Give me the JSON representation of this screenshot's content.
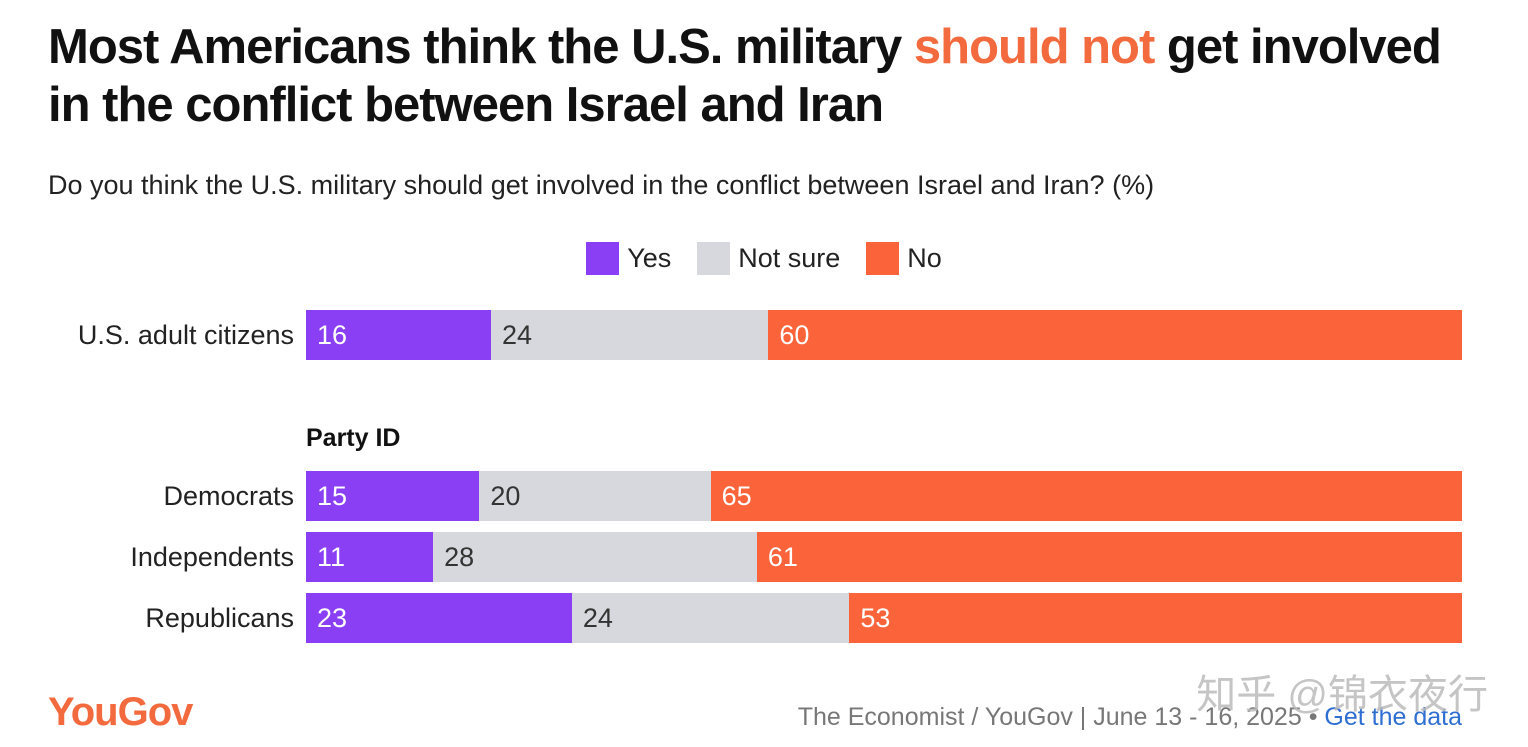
{
  "title": {
    "part1": "Most Americans think the U.S. military ",
    "highlight": "should not",
    "part2": " get involved in the conflict between Israel and Iran"
  },
  "subtitle": "Do you think the U.S. military should get involved in the conflict between Israel and Iran? (%)",
  "colors": {
    "yes": "#8a3ff5",
    "not_sure": "#d7d8de",
    "no": "#fb643a",
    "accent": "#f26a3d",
    "link": "#2f6fd1"
  },
  "chart_data": {
    "type": "bar",
    "orientation": "horizontal",
    "stacked": true,
    "legend": {
      "placement": "top-center",
      "entries": [
        "Yes",
        "Not sure",
        "No"
      ]
    },
    "categories": [
      "U.S. adult citizens",
      "Democrats",
      "Independents",
      "Republicans"
    ],
    "group_label": "Party ID",
    "series": [
      {
        "name": "Yes",
        "values": [
          16,
          15,
          11,
          23
        ]
      },
      {
        "name": "Not sure",
        "values": [
          24,
          20,
          28,
          24
        ]
      },
      {
        "name": "No",
        "values": [
          60,
          65,
          61,
          53
        ]
      }
    ],
    "xlim": [
      0,
      100
    ],
    "grid": false
  },
  "footer": {
    "logo": "YouGov",
    "source": "The Economist / YouGov | June 13 - 16, 2025 • ",
    "link": "Get the data"
  },
  "watermark": "知乎 @锦衣夜行"
}
